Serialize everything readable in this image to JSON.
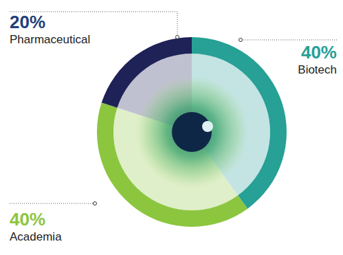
{
  "chart_data": {
    "type": "pie",
    "categories": [
      "Biotech",
      "Academia",
      "Pharmaceutical"
    ],
    "values": [
      40,
      40,
      20
    ],
    "value_labels": [
      "40%",
      "40%",
      "20%"
    ],
    "colors": [
      "#27a096",
      "#8cc63f",
      "#1f2257"
    ],
    "data_labels": true
  }
}
